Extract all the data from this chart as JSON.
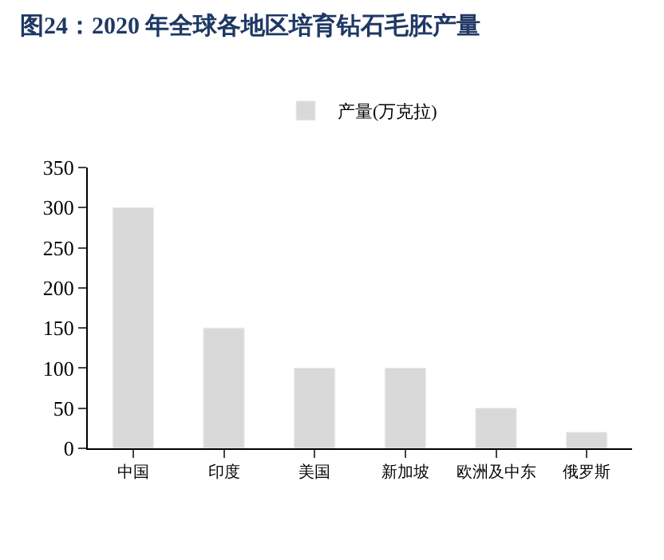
{
  "chart_data": {
    "type": "bar",
    "title": "图24：2020 年全球各地区培育钻石毛胚产量",
    "categories": [
      "中国",
      "印度",
      "美国",
      "新加坡",
      "欧洲及中东",
      "俄罗斯"
    ],
    "series": [
      {
        "name": "产量(万克拉)",
        "color": "#d9d9d9",
        "values": [
          300,
          150,
          100,
          100,
          50,
          20
        ]
      }
    ],
    "ylim": [
      0,
      350
    ],
    "yticks": [
      0,
      50,
      100,
      150,
      200,
      250,
      300,
      350
    ],
    "legend": "top"
  }
}
